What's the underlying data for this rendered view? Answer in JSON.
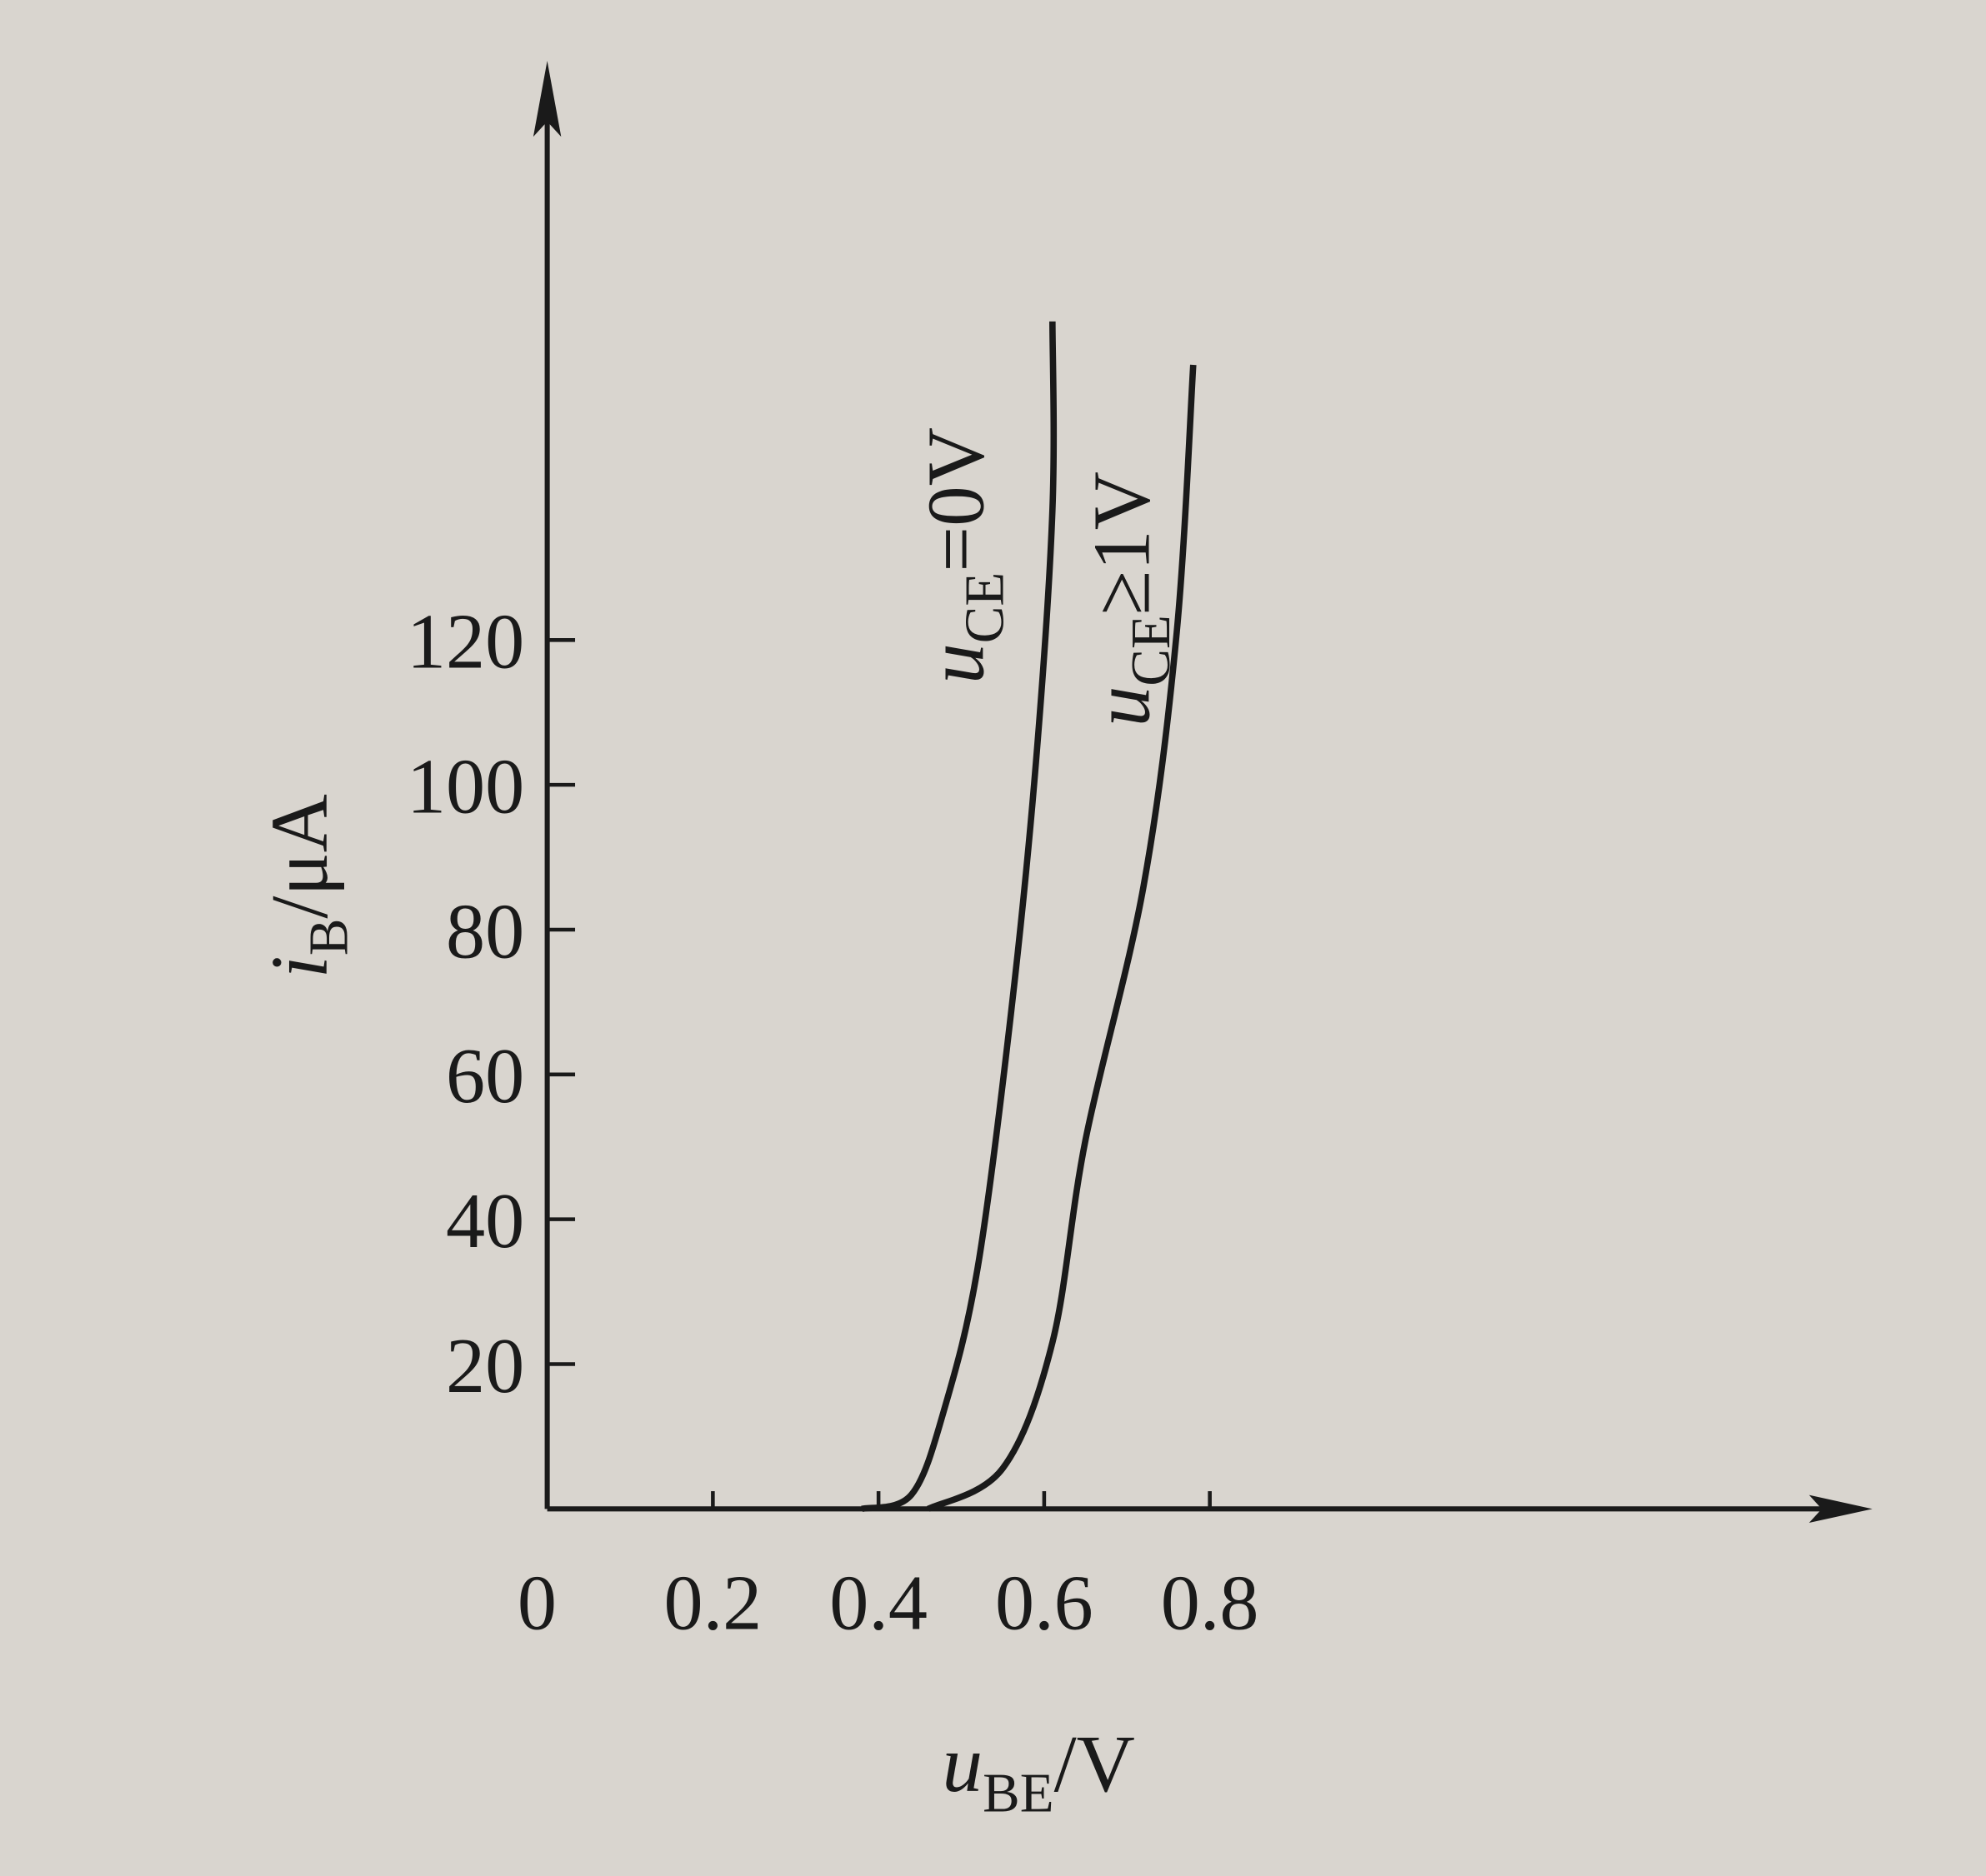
{
  "chart_data": {
    "type": "line",
    "x_label": [
      "u",
      "BE",
      "/V"
    ],
    "y_label": [
      "i",
      "B",
      "/μA"
    ],
    "xlim": [
      0,
      1.6
    ],
    "ylim": [
      0,
      200
    ],
    "xticks": [
      0,
      0.2,
      0.4,
      0.6,
      0.8
    ],
    "yticks": [
      20,
      40,
      60,
      80,
      100,
      120
    ],
    "series": [
      {
        "name": [
          "u",
          "CE",
          "=0V"
        ],
        "color": "#1a1a1a",
        "x": [
          0.38,
          0.44,
          0.48,
          0.52,
          0.56,
          0.59,
          0.61,
          0.61
        ],
        "values": [
          0,
          2,
          14,
          33.5,
          68.5,
          103,
          138,
          164
        ]
      },
      {
        "name": [
          "u",
          "CE",
          "≥1V"
        ],
        "color": "#1a1a1a",
        "x": [
          0.46,
          0.55,
          0.61,
          0.65,
          0.72,
          0.76,
          0.78
        ],
        "values": [
          0,
          5.6,
          23,
          51,
          86,
          121,
          158
        ]
      }
    ]
  }
}
